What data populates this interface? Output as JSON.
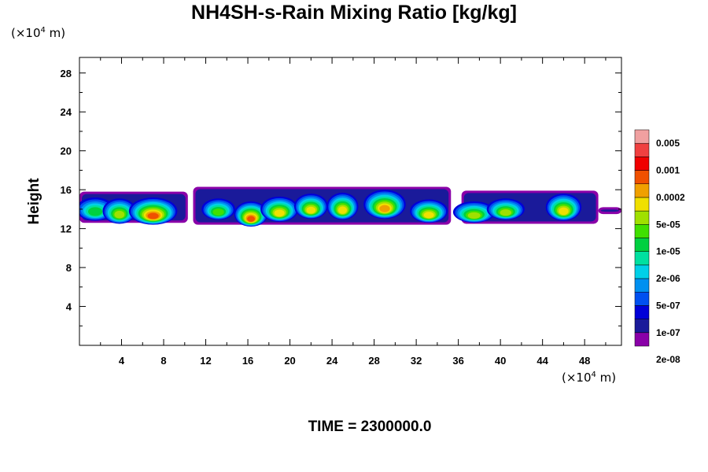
{
  "title": "NH4SH-s-Rain Mixing Ratio [kg/kg]",
  "y_unit": {
    "prefix": "(×10",
    "exp": "4",
    "suffix": " m)"
  },
  "x_unit": {
    "prefix": "(×10",
    "exp": "4",
    "suffix": " m)"
  },
  "time_label": "TIME = 2300000.0",
  "chart_data": {
    "type": "heatmap",
    "ylabel": "Height",
    "xlim": [
      0,
      51.5
    ],
    "ylim": [
      0,
      29.6
    ],
    "x_ticks": [
      4,
      8,
      12,
      16,
      20,
      24,
      28,
      32,
      36,
      40,
      44,
      48
    ],
    "y_ticks": [
      4,
      8,
      12,
      16,
      20,
      24,
      28
    ],
    "colorbar": {
      "labels": [
        "0.005",
        "0.001",
        "0.0002",
        "5e-05",
        "1e-05",
        "2e-06",
        "5e-07",
        "1e-07",
        "2e-08"
      ],
      "colors": [
        "#8a00a8",
        "#1a1a9a",
        "#0000d8",
        "#0050f0",
        "#0090f0",
        "#00d0e8",
        "#00e0a0",
        "#00d040",
        "#40e000",
        "#a0e000",
        "#f0e000",
        "#f0a000",
        "#f05000",
        "#f00000",
        "#f04040",
        "#f0a0a0"
      ]
    },
    "cells": [
      {
        "x": 1.5,
        "y": 14.0,
        "rx": 1.8,
        "ry": 1.2,
        "level": 7
      },
      {
        "x": 3.8,
        "y": 13.8,
        "rx": 1.6,
        "ry": 1.3,
        "level": 9
      },
      {
        "x": 7.0,
        "y": 13.8,
        "rx": 2.3,
        "ry": 1.4,
        "level": 12
      },
      {
        "x": 13.2,
        "y": 14.0,
        "rx": 1.6,
        "ry": 1.1,
        "level": 8
      },
      {
        "x": 16.3,
        "y": 13.5,
        "rx": 1.6,
        "ry": 1.3,
        "level": 12
      },
      {
        "x": 19.0,
        "y": 14.0,
        "rx": 1.8,
        "ry": 1.3,
        "level": 10
      },
      {
        "x": 22.0,
        "y": 14.3,
        "rx": 1.6,
        "ry": 1.3,
        "level": 10
      },
      {
        "x": 25.0,
        "y": 14.3,
        "rx": 1.5,
        "ry": 1.4,
        "level": 10
      },
      {
        "x": 29.0,
        "y": 14.5,
        "rx": 2.0,
        "ry": 1.5,
        "level": 11
      },
      {
        "x": 33.2,
        "y": 13.8,
        "rx": 1.8,
        "ry": 1.2,
        "level": 10
      },
      {
        "x": 37.5,
        "y": 13.7,
        "rx": 2.0,
        "ry": 1.1,
        "level": 9
      },
      {
        "x": 40.5,
        "y": 14.0,
        "rx": 1.8,
        "ry": 1.1,
        "level": 9
      },
      {
        "x": 46.0,
        "y": 14.2,
        "rx": 1.7,
        "ry": 1.4,
        "level": 10
      }
    ],
    "bands": [
      {
        "x0": 0,
        "x1": 10.3,
        "y0": 12.6,
        "y1": 15.8
      },
      {
        "x0": 10.8,
        "x1": 35.3,
        "y0": 12.4,
        "y1": 16.3
      },
      {
        "x0": 36.3,
        "x1": 49.3,
        "y0": 12.5,
        "y1": 15.9
      },
      {
        "x0": 49.3,
        "x1": 51.5,
        "y0": 13.5,
        "y1": 14.2
      }
    ]
  }
}
